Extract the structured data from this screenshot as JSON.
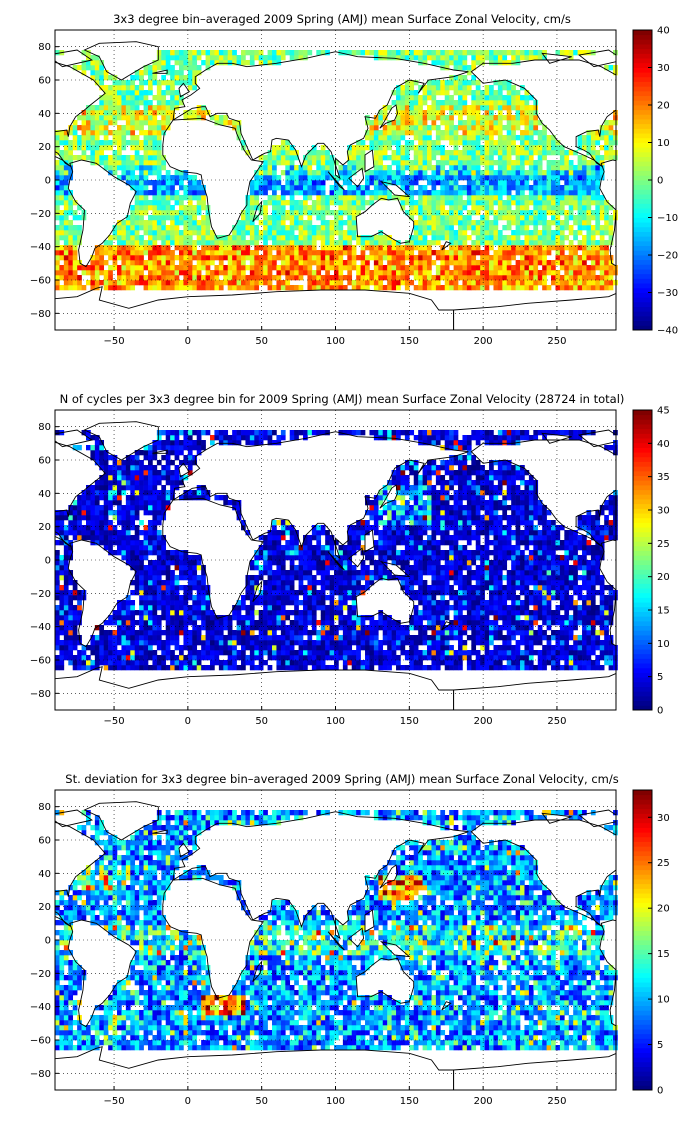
{
  "chart_data": [
    {
      "type": "heatmap",
      "title": "3x3 degree bin–averaged 2009 Spring (AMJ) mean Surface Zonal Velocity, cm/s",
      "xlabel": "",
      "ylabel": "",
      "xlim": [
        -90,
        290
      ],
      "ylim": [
        -90,
        90
      ],
      "xticks": [
        -50,
        0,
        50,
        100,
        150,
        200,
        250
      ],
      "yticks": [
        -80,
        -60,
        -40,
        -20,
        0,
        20,
        40,
        60,
        80
      ],
      "grid": true,
      "colormap": "jet",
      "colorbar": {
        "range": [
          -40,
          40
        ],
        "ticks": [
          -40,
          -30,
          -20,
          -10,
          0,
          10,
          20,
          30,
          40
        ],
        "placement": "right"
      },
      "bin_size_deg": 3,
      "field_description": "zonal velocity per bin"
    },
    {
      "type": "heatmap",
      "title": "N of cycles per 3x3 degree bin for 2009 Spring (AMJ) mean Surface Zonal Velocity (28724 in total)",
      "xlabel": "",
      "ylabel": "",
      "xlim": [
        -90,
        290
      ],
      "ylim": [
        -90,
        90
      ],
      "xticks": [
        -50,
        0,
        50,
        100,
        150,
        200,
        250
      ],
      "yticks": [
        -80,
        -60,
        -40,
        -20,
        0,
        20,
        40,
        60,
        80
      ],
      "grid": true,
      "colormap": "jet",
      "colorbar": {
        "range": [
          0,
          45
        ],
        "ticks": [
          0,
          5,
          10,
          15,
          20,
          25,
          30,
          35,
          40,
          45
        ],
        "placement": "right"
      },
      "bin_size_deg": 3,
      "total_cycles": 28724
    },
    {
      "type": "heatmap",
      "title": "St. deviation for 3x3 degree bin–averaged 2009 Spring (AMJ) mean Surface Zonal Velocity, cm/s",
      "xlabel": "",
      "ylabel": "",
      "xlim": [
        -90,
        290
      ],
      "ylim": [
        -90,
        90
      ],
      "xticks": [
        -50,
        0,
        50,
        100,
        150,
        200,
        250
      ],
      "yticks": [
        -80,
        -60,
        -40,
        -20,
        0,
        20,
        40,
        60,
        80
      ],
      "grid": true,
      "colormap": "jet",
      "colorbar": {
        "range": [
          0,
          33
        ],
        "ticks": [
          0,
          5,
          10,
          15,
          20,
          25,
          30
        ],
        "placement": "right"
      },
      "bin_size_deg": 3
    }
  ]
}
